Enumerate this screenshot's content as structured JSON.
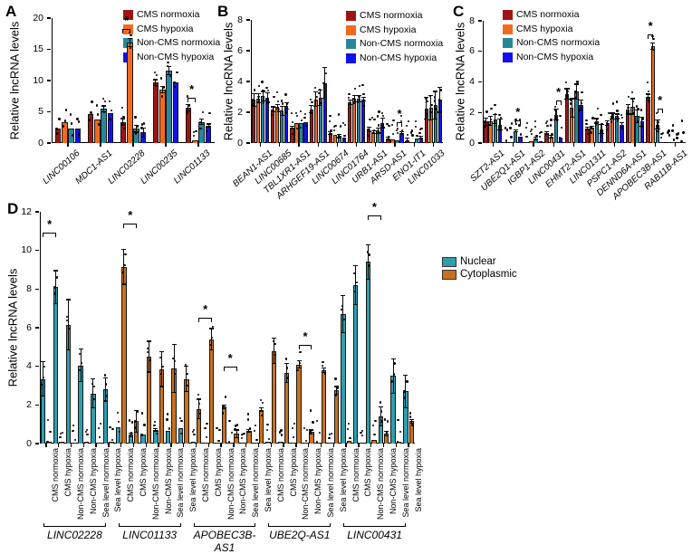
{
  "chart_data": [
    {
      "id": "A",
      "type": "bar",
      "panel_label": "A",
      "ylabel": "Relative lncRNA levels",
      "ylim": [
        0,
        20
      ],
      "yticks": [
        0,
        5,
        10,
        15,
        20
      ],
      "categories": [
        "LINC00106",
        "MDC1-AS1",
        "LINC02228",
        "LINC00235",
        "LINC01133"
      ],
      "legend": [
        "CMS normoxia",
        "CMS hypoxia",
        "Non-CMS normoxia",
        "Non-CMS hypoxia"
      ],
      "colors": [
        "#A01313",
        "#F4691E",
        "#26879A",
        "#1111EE"
      ],
      "series": [
        {
          "name": "CMS normoxia",
          "values": [
            2.3,
            4.6,
            3.4,
            9.7,
            5.6
          ],
          "err": [
            0.1,
            0.1,
            0.5,
            0.45,
            0.5
          ]
        },
        {
          "name": "CMS hypoxia",
          "values": [
            3.3,
            3.7,
            16.1,
            8.5,
            0.5
          ],
          "err": [
            0.1,
            0.1,
            0.65,
            0.5,
            0.08
          ]
        },
        {
          "name": "Non-CMS normoxia",
          "values": [
            2.3,
            5.5,
            2.3,
            11.6,
            3.4
          ],
          "err": [
            0.15,
            0.45,
            0.55,
            0.7,
            0.45
          ]
        },
        {
          "name": "Non-CMS hypoxia",
          "values": [
            2.3,
            4.8,
            1.7,
            9.7,
            2.8
          ],
          "err": [
            0.1,
            0.1,
            0.7,
            0.12,
            0.25
          ]
        }
      ],
      "significance": [
        {
          "category": 2,
          "bars": [
            0,
            1
          ],
          "y": 18.2,
          "label": "*"
        },
        {
          "category": 4,
          "bars": [
            0,
            1
          ],
          "y": 7.3,
          "label": "*"
        }
      ]
    },
    {
      "id": "B",
      "type": "bar",
      "panel_label": "B",
      "ylabel": "Relative lncRNA levels",
      "ylim": [
        0,
        8
      ],
      "yticks": [
        0,
        2,
        4,
        6,
        8
      ],
      "categories": [
        "BEAN1-AS1",
        "LINC00685",
        "TBL1XR1-AS1",
        "ARHGEF19-AS1",
        "LINC00674",
        "LINC01764",
        "URB1-AS1",
        "ARSD-AS1",
        "ENO1-IT1",
        "LINC01033"
      ],
      "legend": [
        "CMS normoxia",
        "CMS hypoxia",
        "Non-CMS normoxia",
        "Non-CMS hypoxia"
      ],
      "colors": [
        "#A01313",
        "#F4691E",
        "#26879A",
        "#1111EE"
      ],
      "series": [
        {
          "name": "CMS normoxia",
          "values": [
            2.8,
            2.2,
            1.0,
            2.2,
            0.65,
            2.65,
            0.9,
            0.3,
            0.2,
            2.25
          ],
          "err": [
            0.4,
            0.15,
            0.1,
            0.25,
            0.1,
            0.15,
            0.15,
            0.1,
            0.1,
            0.7
          ]
        },
        {
          "name": "CMS hypoxia",
          "values": [
            2.9,
            2.35,
            1.3,
            2.85,
            0.55,
            2.9,
            0.7,
            0.25,
            0.05,
            2.3
          ],
          "err": [
            0.3,
            0.15,
            0.05,
            0.45,
            0.05,
            0.2,
            0.1,
            0.05,
            0.03,
            0.8
          ]
        },
        {
          "name": "Non-CMS normoxia",
          "values": [
            3.05,
            2.1,
            1.3,
            2.95,
            0.45,
            2.9,
            0.8,
            0.2,
            0.3,
            2.45
          ],
          "err": [
            0.3,
            0.3,
            0.05,
            0.5,
            0.1,
            0.2,
            0.15,
            0.05,
            0.05,
            0.9
          ]
        },
        {
          "name": "Non-CMS hypoxia",
          "values": [
            2.95,
            2.4,
            1.35,
            3.9,
            0.35,
            2.85,
            1.3,
            0.65,
            0.35,
            2.8
          ],
          "err": [
            0.3,
            0.2,
            0.05,
            1.0,
            0.05,
            0.1,
            0.3,
            0.1,
            0.08,
            0.8
          ]
        }
      ],
      "significance": [
        {
          "category": 7,
          "bars": [
            2,
            3
          ],
          "y": 1.35,
          "label": "*"
        }
      ]
    },
    {
      "id": "C",
      "type": "bar",
      "panel_label": "C",
      "ylabel": "Relative lncRNA levels",
      "ylim": [
        0,
        8
      ],
      "yticks": [
        0,
        2,
        4,
        6,
        8
      ],
      "categories": [
        "SZT2-AS1",
        "UBE2Q1-AS1",
        "IGBP1-AS2",
        "LINC00431",
        "EHMT2-AS1",
        "LINC01311",
        "PSPC1-AS2",
        "DENND6A-AS1",
        "APOBEC3B-AS1",
        "RAB11B-AS1"
      ],
      "legend": [
        "CMS normoxia",
        "CMS hypoxia",
        "Non-CMS normoxia",
        "Non-CMS hypoxia"
      ],
      "colors": [
        "#A01313",
        "#F4691E",
        "#26879A",
        "#1111EE"
      ],
      "series": [
        {
          "name": "CMS normoxia",
          "values": [
            1.4,
            0.05,
            0.07,
            0.65,
            3.2,
            0.95,
            1.3,
            2.2,
            3.05,
            0.05
          ],
          "err": [
            0.25,
            0.02,
            0.03,
            0.1,
            0.35,
            0.1,
            0.15,
            0.3,
            0.15,
            0.02
          ]
        },
        {
          "name": "CMS hypoxia",
          "values": [
            1.45,
            0.05,
            0.12,
            0.4,
            2.3,
            1.0,
            1.75,
            2.4,
            6.35,
            0.05
          ],
          "err": [
            0.3,
            0.02,
            0.04,
            0.08,
            0.6,
            0.1,
            0.2,
            0.5,
            0.2,
            0.02
          ]
        },
        {
          "name": "Non-CMS normoxia",
          "values": [
            1.55,
            0.8,
            0.3,
            1.85,
            3.35,
            1.45,
            1.75,
            1.75,
            1.2,
            0.05
          ],
          "err": [
            0.3,
            0.08,
            0.1,
            0.35,
            0.5,
            0.15,
            0.15,
            0.4,
            0.3,
            0.02
          ]
        },
        {
          "name": "Non-CMS hypoxia",
          "values": [
            1.2,
            0.4,
            0.12,
            0.35,
            2.5,
            0.9,
            1.2,
            1.4,
            0.08,
            0.05
          ],
          "err": [
            0.35,
            0.05,
            0.04,
            0.05,
            0.3,
            0.3,
            0.15,
            0.3,
            0.03,
            0.02
          ]
        }
      ],
      "significance": [
        {
          "category": 1,
          "bars": [
            2,
            3
          ],
          "y": 1.5,
          "label": "*"
        },
        {
          "category": 3,
          "bars": [
            2,
            3
          ],
          "y": 2.8,
          "label": "*"
        },
        {
          "category": 8,
          "bars": [
            0,
            1
          ],
          "y": 7.1,
          "label": "*"
        },
        {
          "category": 8,
          "bars": [
            2,
            3
          ],
          "y": 2.25,
          "label": "*"
        }
      ]
    },
    {
      "id": "D",
      "type": "paired-bar",
      "panel_label": "D",
      "ylabel": "Relative lncRNA levels",
      "ylim": [
        0,
        12
      ],
      "yticks": [
        0,
        2,
        4,
        6,
        8,
        10,
        12
      ],
      "groups": [
        "LINC02228",
        "LINC01133",
        "APOBEC3B-AS1",
        "UBE2Q-AS1",
        "LINC00431"
      ],
      "conditions": [
        "CMS normoxia",
        "CMS hypoxia",
        "Non-CMS normoxia",
        "Non-CMS hypoxia",
        "Sea level normoxia",
        "Sea level hypoxia"
      ],
      "legend": [
        "Nuclear",
        "Cytoplasmic"
      ],
      "colors": [
        "#2E9FAF",
        "#C8711F"
      ],
      "series": [
        {
          "name": "Nuclear",
          "values": [
            [
              3.35,
              8.1,
              6.15,
              4.05,
              2.6,
              2.8
            ],
            [
              0.85,
              0.45,
              0.45,
              0.7,
              0.65,
              0.8
            ],
            [
              0.1,
              0.05,
              0.05,
              0.05,
              0.05,
              0.05
            ],
            [
              0.1,
              0.08,
              0.05,
              0.05,
              0.05,
              0.05
            ],
            [
              6.7,
              8.2,
              9.4,
              1.4,
              3.5,
              2.7
            ]
          ],
          "err": [
            [
              0.9,
              0.85,
              1.3,
              0.85,
              0.75,
              0.6
            ],
            [
              0.05,
              0.1,
              0.05,
              0.08,
              0.05,
              0.05
            ],
            [
              0.02,
              0.02,
              0.02,
              0.02,
              0.02,
              0.02
            ],
            [
              0.02,
              0.02,
              0.02,
              0.02,
              0.02,
              0.02
            ],
            [
              0.95,
              1.0,
              0.9,
              0.5,
              0.9,
              0.85
            ]
          ]
        },
        {
          "name": "Cytoplasmic",
          "values": [
            [
              0.1,
              0.1,
              0.05,
              0.1,
              0.05,
              0.1
            ],
            [
              9.15,
              1.15,
              4.5,
              3.85,
              3.9,
              3.35
            ],
            [
              1.8,
              5.4,
              1.9,
              0.5,
              0.65,
              1.75
            ],
            [
              4.8,
              3.65,
              4.1,
              0.6,
              3.8,
              2.75
            ],
            [
              0.15,
              0.05,
              0.2,
              0.5,
              0.1,
              1.15
            ]
          ],
          "err": [
            [
              0.03,
              0.03,
              0.02,
              0.03,
              0.02,
              0.03
            ],
            [
              0.9,
              0.55,
              0.8,
              0.9,
              1.25,
              0.65
            ],
            [
              0.5,
              0.55,
              0.1,
              0.2,
              0.06,
              0.1
            ],
            [
              0.65,
              0.5,
              0.2,
              0.1,
              0.12,
              0.2
            ],
            [
              0.04,
              0.02,
              0.05,
              0.12,
              0.03,
              0.1
            ]
          ]
        }
      ],
      "significance": [
        {
          "group": 0,
          "pairs": [
            0,
            1
          ],
          "series": 0,
          "y": 10.9,
          "label": "*"
        },
        {
          "group": 1,
          "pairs": [
            0,
            1
          ],
          "series": 1,
          "y": 11.4,
          "label": "*"
        },
        {
          "group": 2,
          "pairs": [
            0,
            1
          ],
          "series": 1,
          "y": 6.5,
          "label": "*"
        },
        {
          "group": 2,
          "pairs": [
            2,
            3
          ],
          "series": 1,
          "y": 4.0,
          "label": "*"
        },
        {
          "group": 3,
          "pairs": [
            2,
            3
          ],
          "series": 1,
          "y": 5.1,
          "label": "*"
        },
        {
          "group": 4,
          "pairs": [
            2,
            3
          ],
          "series": 0,
          "y": 11.8,
          "label": "*"
        }
      ]
    }
  ]
}
